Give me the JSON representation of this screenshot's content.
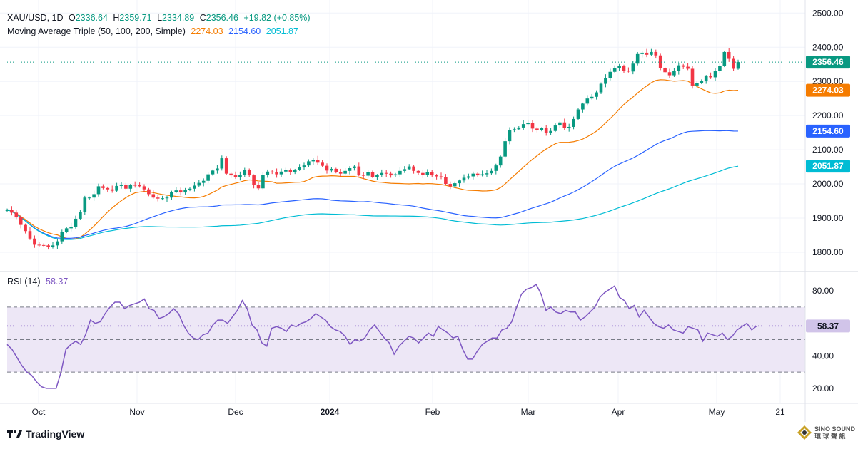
{
  "header": {
    "symbol": "XAU/USD, 1D",
    "open_label": "O",
    "open": "2336.64",
    "high_label": "H",
    "high": "2359.71",
    "low_label": "L",
    "low": "2334.89",
    "close_label": "C",
    "close": "2356.46",
    "change": "+19.82 (+0.85%)",
    "ma_label": "Moving Average Triple (50, 100, 200, Simple)",
    "ma50": "2274.03",
    "ma100": "2154.60",
    "ma200": "2051.87"
  },
  "rsi_header": {
    "label": "RSI (14)",
    "value": "58.37"
  },
  "brand": {
    "name": "TradingView"
  },
  "watermark": {
    "line1": "SINO SOUND",
    "line2": "環 球 聲 訊"
  },
  "colors": {
    "up": "#089981",
    "down": "#f23645",
    "ma50": "#f57c00",
    "ma100": "#2962ff",
    "ma200": "#00bcd4",
    "rsi": "#7e57c2",
    "rsi_band": "#ede7f6"
  },
  "chart_data": [
    {
      "type": "candlestick",
      "name": "XAU/USD",
      "x_ticks": [
        "Oct",
        "Nov",
        "Dec",
        "2024",
        "Feb",
        "Mar",
        "Apr",
        "May",
        "21"
      ],
      "ylim": [
        1760,
        2510
      ],
      "y_ticks": [
        1800,
        1900,
        2000,
        2100,
        2200,
        2300,
        2400,
        2500
      ],
      "last_price": 2356.46,
      "closes": [
        1925,
        1916,
        1902,
        1880,
        1862,
        1840,
        1822,
        1821,
        1820,
        1816,
        1820,
        1832,
        1860,
        1870,
        1875,
        1898,
        1918,
        1960,
        1960,
        1970,
        1993,
        1988,
        1984,
        1980,
        1994,
        1998,
        1986,
        1997,
        1996,
        1993,
        1984,
        1970,
        1960,
        1957,
        1958,
        1960,
        1977,
        1981,
        1975,
        1982,
        1986,
        1995,
        2003,
        2009,
        2028,
        2039,
        2045,
        2075,
        2030,
        2025,
        2020,
        2027,
        2040,
        2025,
        1996,
        1987,
        2026,
        2036,
        2034,
        2028,
        2036,
        2040,
        2035,
        2041,
        2048,
        2054,
        2066,
        2071,
        2062,
        2053,
        2039,
        2044,
        2034,
        2030,
        2038,
        2046,
        2051,
        2026,
        2024,
        2034,
        2020,
        2026,
        2032,
        2030,
        2025,
        2028,
        2038,
        2043,
        2051,
        2038,
        2032,
        2027,
        2035,
        2025,
        2022,
        2020,
        2000,
        1993,
        2002,
        2010,
        2018,
        2022,
        2030,
        2025,
        2028,
        2031,
        2038,
        2054,
        2080,
        2125,
        2158,
        2160,
        2165,
        2175,
        2179,
        2162,
        2158,
        2163,
        2150,
        2155,
        2171,
        2180,
        2163,
        2167,
        2190,
        2218,
        2235,
        2250,
        2255,
        2268,
        2293,
        2310,
        2328,
        2340,
        2346,
        2331,
        2329,
        2352,
        2380,
        2384,
        2378,
        2386,
        2376,
        2339,
        2327,
        2318,
        2330,
        2347,
        2343,
        2337,
        2288,
        2295,
        2301,
        2316,
        2312,
        2330,
        2346,
        2386,
        2366,
        2337,
        2356.46
      ],
      "moving_averages": [
        {
          "name": "MA 50",
          "period": 50,
          "value": 2274.03
        },
        {
          "name": "MA 100",
          "period": 100,
          "value": 2154.6
        },
        {
          "name": "MA 200",
          "period": 200,
          "value": 2051.87
        }
      ]
    },
    {
      "type": "line",
      "name": "RSI (14)",
      "ylim": [
        10,
        90
      ],
      "y_ticks": [
        20,
        40,
        80
      ],
      "levels": [
        30,
        50,
        58.37,
        70
      ],
      "last_value": 58.37,
      "values": [
        47,
        44,
        39,
        34,
        30,
        28,
        24,
        21,
        20,
        20,
        20,
        30,
        44,
        47,
        49,
        47,
        53,
        62,
        60,
        61,
        66,
        70,
        73,
        73,
        69,
        71,
        72,
        73,
        75,
        69,
        68,
        63,
        64,
        66,
        69,
        66,
        59,
        54,
        51,
        50,
        53,
        54,
        59,
        62,
        62,
        60,
        64,
        68,
        74,
        69,
        59,
        56,
        48,
        46,
        57,
        58,
        57,
        55,
        59,
        58,
        60,
        61,
        63,
        66,
        64,
        62,
        58,
        56,
        55,
        52,
        47,
        50,
        49,
        51,
        56,
        59,
        55,
        51,
        48,
        41,
        46,
        49,
        52,
        51,
        48,
        51,
        54,
        52,
        58,
        56,
        54,
        51,
        52,
        44,
        38,
        38,
        43,
        47,
        49,
        51,
        51,
        56,
        57,
        61,
        70,
        78,
        81,
        82,
        84,
        78,
        68,
        70,
        67,
        66,
        68,
        67,
        67,
        62,
        64,
        67,
        70,
        76,
        79,
        81,
        83,
        76,
        74,
        69,
        71,
        64,
        68,
        64,
        60,
        58,
        57,
        59,
        56,
        55,
        54,
        58,
        57,
        56,
        49,
        54,
        53,
        52,
        54,
        50,
        52,
        56,
        58,
        60,
        56,
        58.37
      ]
    }
  ]
}
